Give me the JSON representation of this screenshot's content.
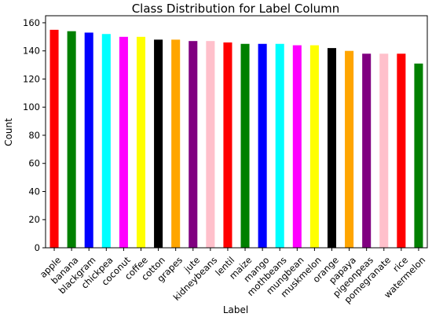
{
  "chart_data": {
    "type": "bar",
    "title": "Class Distribution for Label Column",
    "xlabel": "Label",
    "ylabel": "Count",
    "ylim": [
      0,
      165
    ],
    "yticks": [
      0,
      20,
      40,
      60,
      80,
      100,
      120,
      140,
      160
    ],
    "grid": false,
    "legend": "none",
    "categories": [
      "apple",
      "banana",
      "blackgram",
      "chickpea",
      "coconut",
      "coffee",
      "cotton",
      "grapes",
      "jute",
      "kidneybeans",
      "lentil",
      "maize",
      "mango",
      "mothbeans",
      "mungbean",
      "muskmelon",
      "orange",
      "papaya",
      "pigeonpeas",
      "pomegranate",
      "rice",
      "watermelon"
    ],
    "values": [
      155,
      154,
      153,
      152,
      150,
      150,
      148,
      148,
      147,
      147,
      146,
      145,
      145,
      145,
      144,
      144,
      142,
      140,
      138,
      138,
      138,
      131
    ],
    "bar_colors": [
      "#ff0000",
      "#008000",
      "#0000ff",
      "#00ffff",
      "#ff00ff",
      "#ffff00",
      "#000000",
      "#ffa500",
      "#800080",
      "#ffc0cb",
      "#ff0000",
      "#008000",
      "#0000ff",
      "#00ffff",
      "#ff00ff",
      "#ffff00",
      "#000000",
      "#ffa500",
      "#800080",
      "#ffc0cb",
      "#ff0000",
      "#008000"
    ]
  }
}
